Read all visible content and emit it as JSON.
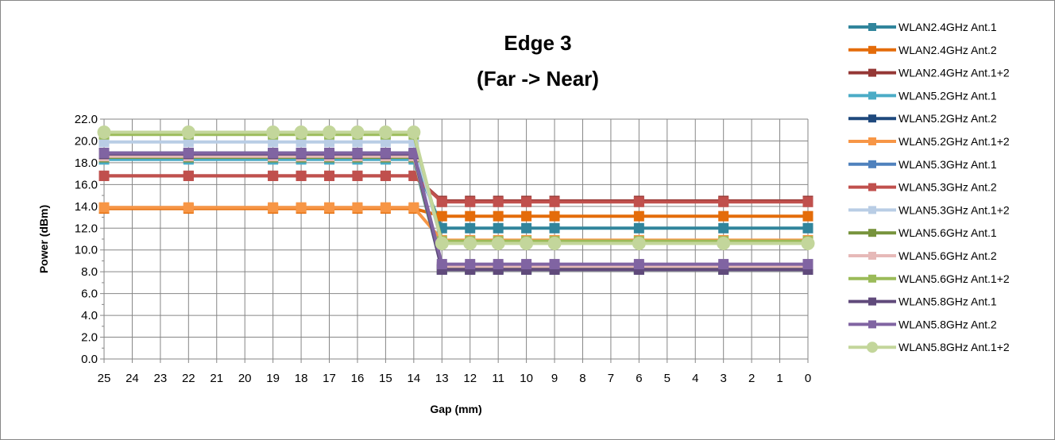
{
  "chart_data": {
    "type": "line",
    "title_line1": "Edge 3",
    "title_line2": "(Far -> Near)",
    "xlabel": "Gap (mm)",
    "ylabel": "Power (dBm)",
    "x_categories": [
      "25",
      "24",
      "23",
      "22",
      "21",
      "20",
      "19",
      "18",
      "17",
      "16",
      "15",
      "14",
      "13",
      "12",
      "11",
      "10",
      "9",
      "8",
      "7",
      "6",
      "5",
      "4",
      "3",
      "2",
      "1",
      "0"
    ],
    "x_measured": [
      25,
      22,
      19,
      18,
      17,
      16,
      15,
      14,
      13,
      12,
      11,
      10,
      9,
      6,
      3,
      0
    ],
    "ylim": [
      0,
      22
    ],
    "yticks": [
      "0.0",
      "2.0",
      "4.0",
      "6.0",
      "8.0",
      "10.0",
      "12.0",
      "14.0",
      "16.0",
      "18.0",
      "20.0",
      "22.0"
    ],
    "grid": true,
    "legend_position": "right",
    "series": [
      {
        "name": "WLAN2.4GHz Ant.1",
        "color": "#31859C",
        "marker": "square",
        "values": [
          18.4,
          18.4,
          18.4,
          18.4,
          18.4,
          18.4,
          18.4,
          18.4,
          12.0,
          12.0,
          12.0,
          12.0,
          12.0,
          12.0,
          12.0,
          12.0
        ]
      },
      {
        "name": "WLAN2.4GHz Ant.2",
        "color": "#E46C0A",
        "marker": "square",
        "values": [
          13.8,
          13.8,
          13.8,
          13.8,
          13.8,
          13.8,
          13.8,
          13.8,
          13.1,
          13.1,
          13.1,
          13.1,
          13.1,
          13.1,
          13.1,
          13.1
        ]
      },
      {
        "name": "WLAN2.4GHz Ant.1+2",
        "color": "#953735",
        "marker": "square",
        "values": [
          16.8,
          16.8,
          16.8,
          16.8,
          16.8,
          16.8,
          16.8,
          16.8,
          14.5,
          14.5,
          14.5,
          14.5,
          14.5,
          14.5,
          14.5,
          14.5
        ]
      },
      {
        "name": "WLAN5.2GHz Ant.1",
        "color": "#4BACC6",
        "marker": "square",
        "values": [
          18.3,
          18.3,
          18.3,
          18.3,
          18.3,
          18.3,
          18.3,
          18.3,
          8.3,
          8.3,
          8.3,
          8.3,
          8.3,
          8.3,
          8.3,
          8.3
        ]
      },
      {
        "name": "WLAN5.2GHz Ant.2",
        "color": "#1F497D",
        "marker": "square",
        "values": [
          18.9,
          18.9,
          18.9,
          18.9,
          18.9,
          18.9,
          18.9,
          18.9,
          8.2,
          8.2,
          8.2,
          8.2,
          8.2,
          8.2,
          8.2,
          8.2
        ]
      },
      {
        "name": "WLAN5.2GHz Ant.1+2",
        "color": "#F79646",
        "marker": "square",
        "values": [
          13.9,
          13.9,
          13.9,
          13.9,
          13.9,
          13.9,
          13.9,
          13.9,
          10.9,
          10.9,
          10.9,
          10.9,
          10.9,
          10.9,
          10.9,
          10.9
        ]
      },
      {
        "name": "WLAN5.3GHz Ant.1",
        "color": "#4F81BD",
        "marker": "square",
        "values": [
          18.7,
          18.7,
          18.7,
          18.7,
          18.7,
          18.7,
          18.7,
          18.7,
          8.4,
          8.4,
          8.4,
          8.4,
          8.4,
          8.4,
          8.4,
          8.4
        ]
      },
      {
        "name": "WLAN5.3GHz Ant.2",
        "color": "#C0504D",
        "marker": "square",
        "values": [
          16.8,
          16.8,
          16.8,
          16.8,
          16.8,
          16.8,
          16.8,
          16.8,
          14.4,
          14.4,
          14.4,
          14.4,
          14.4,
          14.4,
          14.4,
          14.4
        ]
      },
      {
        "name": "WLAN5.3GHz Ant.1+2",
        "color": "#B9CDE5",
        "marker": "square",
        "values": [
          19.9,
          19.9,
          19.9,
          19.9,
          19.9,
          19.9,
          19.9,
          19.9,
          10.7,
          10.7,
          10.7,
          10.7,
          10.7,
          10.7,
          10.7,
          10.7
        ]
      },
      {
        "name": "WLAN5.6GHz Ant.1",
        "color": "#77933C",
        "marker": "square",
        "values": [
          18.5,
          18.5,
          18.5,
          18.5,
          18.5,
          18.5,
          18.5,
          18.5,
          8.3,
          8.3,
          8.3,
          8.3,
          8.3,
          8.3,
          8.3,
          8.3
        ]
      },
      {
        "name": "WLAN5.6GHz Ant.2",
        "color": "#E6B9B8",
        "marker": "square",
        "values": [
          18.6,
          18.6,
          18.6,
          18.6,
          18.6,
          18.6,
          18.6,
          18.6,
          8.5,
          8.5,
          8.5,
          8.5,
          8.5,
          8.5,
          8.5,
          8.5
        ]
      },
      {
        "name": "WLAN5.6GHz Ant.1+2",
        "color": "#9BBB59",
        "marker": "square",
        "values": [
          20.6,
          20.6,
          20.6,
          20.6,
          20.6,
          20.6,
          20.6,
          20.6,
          10.8,
          10.8,
          10.8,
          10.8,
          10.8,
          10.8,
          10.8,
          10.8
        ]
      },
      {
        "name": "WLAN5.8GHz Ant.1",
        "color": "#604A7B",
        "marker": "square",
        "values": [
          18.8,
          18.8,
          18.8,
          18.8,
          18.8,
          18.8,
          18.8,
          18.8,
          8.2,
          8.2,
          8.2,
          8.2,
          8.2,
          8.2,
          8.2,
          8.2
        ]
      },
      {
        "name": "WLAN5.8GHz Ant.2",
        "color": "#8064A2",
        "marker": "square",
        "values": [
          18.9,
          18.9,
          18.9,
          18.9,
          18.9,
          18.9,
          18.9,
          18.9,
          8.7,
          8.7,
          8.7,
          8.7,
          8.7,
          8.7,
          8.7,
          8.7
        ]
      },
      {
        "name": "WLAN5.8GHz Ant.1+2",
        "color": "#C3D69B",
        "marker": "circle",
        "values": [
          20.8,
          20.8,
          20.8,
          20.8,
          20.8,
          20.8,
          20.8,
          20.8,
          10.6,
          10.6,
          10.6,
          10.6,
          10.6,
          10.6,
          10.6,
          10.6
        ]
      }
    ]
  }
}
